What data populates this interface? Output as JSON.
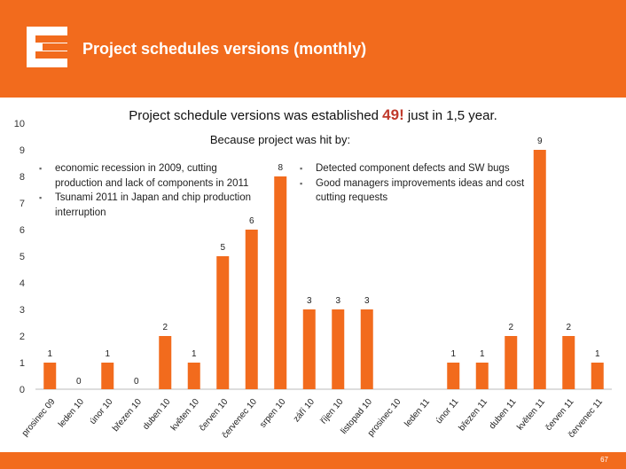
{
  "header": {
    "title": "Project schedules versions (monthly)"
  },
  "chart_title": {
    "prefix": "Project schedule versions was established ",
    "highlight": "49!",
    "suffix": " just in 1,5 year."
  },
  "subtitle": "Because project was hit by:",
  "reasons_left": [
    "economic recession in 2009, cutting production and lack of components in 2011",
    "Tsunami 2011 in Japan and chip production interruption"
  ],
  "reasons_right": [
    "Detected component defects and SW bugs",
    "Good managers improvements ideas and cost cutting requests"
  ],
  "footer": {
    "page_number": "67"
  },
  "colors": {
    "accent": "#f26b1d",
    "bar": "#f26b1d",
    "highlight": "#c0392b"
  },
  "chart_data": {
    "type": "bar",
    "title": "Project schedule versions was established 49! just in 1,5 year.",
    "xlabel": "",
    "ylabel": "",
    "ylim": [
      0,
      10
    ],
    "yticks": [
      0,
      1,
      2,
      3,
      4,
      5,
      6,
      7,
      8,
      9,
      10
    ],
    "grid": false,
    "categories": [
      "prosinec 09",
      "leden 10",
      "únor 10",
      "březen 10",
      "duben 10",
      "květen 10",
      "červen 10",
      "červenec 10",
      "srpen 10",
      "září 10",
      "říjen 10",
      "listopad 10",
      "prosinec 10",
      "leden 11",
      "únor 11",
      "březen 11",
      "duben 11",
      "květen 11",
      "červen 11",
      "červenec 11"
    ],
    "values": [
      1,
      0,
      1,
      0,
      2,
      1,
      5,
      6,
      8,
      3,
      3,
      3,
      0,
      0,
      1,
      1,
      2,
      9,
      2,
      1
    ],
    "value_labels": [
      "1",
      "0",
      "1",
      "0",
      "2",
      "1",
      "5",
      "6",
      "8",
      "3",
      "3",
      "3",
      "",
      "",
      "1",
      "1",
      "2",
      "9",
      "2",
      "1"
    ]
  }
}
